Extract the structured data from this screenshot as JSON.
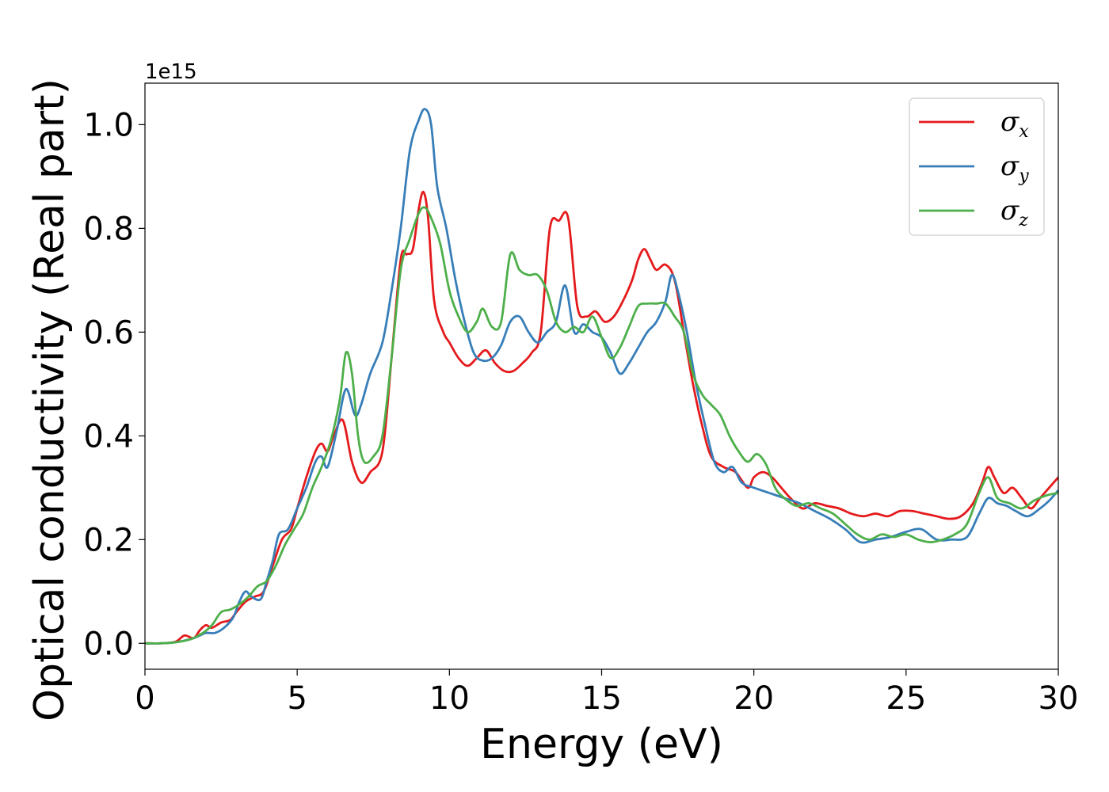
{
  "chart_data": {
    "type": "line",
    "xlabel": "Energy (eV)",
    "ylabel": "Optical conductivity (Real part)",
    "y_offset_label": "1e15",
    "xlim": [
      0,
      30
    ],
    "ylim": [
      -0.05,
      1.08
    ],
    "xticks": [
      0,
      5,
      10,
      15,
      20,
      25,
      30
    ],
    "yticks": [
      0.0,
      0.2,
      0.4,
      0.6,
      0.8,
      1.0
    ],
    "xtick_labels": [
      "0",
      "5",
      "10",
      "15",
      "20",
      "25",
      "30"
    ],
    "ytick_labels": [
      "0.0",
      "0.2",
      "0.4",
      "0.6",
      "0.8",
      "1.0"
    ],
    "grid": false,
    "legend_position": "top-right",
    "series": [
      {
        "name": "σx",
        "symbol": "σ",
        "subscript": "x",
        "color": "#e41a1c",
        "x": [
          0,
          0.5,
          1,
          1.3,
          1.6,
          1.8,
          2,
          2.2,
          2.5,
          2.8,
          3,
          3.3,
          3.6,
          3.9,
          4.2,
          4.5,
          4.8,
          5,
          5.3,
          5.6,
          5.8,
          6,
          6.2,
          6.5,
          6.8,
          7.1,
          7.4,
          7.8,
          8.1,
          8.4,
          8.6,
          8.8,
          9,
          9.15,
          9.3,
          9.5,
          9.8,
          10,
          10.3,
          10.6,
          10.9,
          11.2,
          11.5,
          11.8,
          12.1,
          12.4,
          12.7,
          13,
          13.3,
          13.6,
          13.9,
          14.2,
          14.5,
          14.8,
          15.1,
          15.4,
          15.7,
          16,
          16.2,
          16.4,
          16.6,
          16.8,
          17.1,
          17.4,
          17.7,
          18,
          18.3,
          18.6,
          19,
          19.4,
          19.8,
          20,
          20.3,
          20.6,
          20.9,
          21.2,
          21.6,
          22,
          22.4,
          22.8,
          23.2,
          23.6,
          24,
          24.4,
          24.8,
          25.2,
          25.6,
          26,
          26.4,
          26.8,
          27.2,
          27.5,
          27.7,
          27.9,
          28.2,
          28.5,
          28.8,
          29.1,
          29.4,
          29.7,
          30
        ],
        "y": [
          0,
          0,
          0.003,
          0.015,
          0.01,
          0.025,
          0.035,
          0.03,
          0.04,
          0.045,
          0.06,
          0.08,
          0.09,
          0.1,
          0.15,
          0.2,
          0.22,
          0.26,
          0.32,
          0.37,
          0.385,
          0.37,
          0.4,
          0.43,
          0.35,
          0.31,
          0.33,
          0.37,
          0.55,
          0.74,
          0.75,
          0.76,
          0.84,
          0.87,
          0.82,
          0.66,
          0.6,
          0.58,
          0.55,
          0.535,
          0.55,
          0.565,
          0.54,
          0.525,
          0.525,
          0.54,
          0.56,
          0.6,
          0.8,
          0.815,
          0.82,
          0.65,
          0.63,
          0.64,
          0.62,
          0.63,
          0.66,
          0.7,
          0.74,
          0.76,
          0.74,
          0.72,
          0.73,
          0.7,
          0.6,
          0.5,
          0.42,
          0.36,
          0.34,
          0.33,
          0.3,
          0.32,
          0.33,
          0.32,
          0.3,
          0.28,
          0.26,
          0.27,
          0.265,
          0.26,
          0.25,
          0.245,
          0.25,
          0.245,
          0.255,
          0.255,
          0.25,
          0.245,
          0.24,
          0.245,
          0.27,
          0.31,
          0.34,
          0.32,
          0.29,
          0.3,
          0.28,
          0.26,
          0.28,
          0.3,
          0.32
        ]
      },
      {
        "name": "σy",
        "symbol": "σ",
        "subscript": "y",
        "color": "#377eb8",
        "x": [
          0,
          0.5,
          1,
          1.5,
          1.8,
          2,
          2.3,
          2.6,
          2.9,
          3.1,
          3.3,
          3.5,
          3.8,
          4,
          4.2,
          4.4,
          4.7,
          5,
          5.3,
          5.6,
          5.8,
          6,
          6.3,
          6.6,
          6.9,
          7.1,
          7.4,
          7.8,
          8.1,
          8.4,
          8.7,
          9,
          9.2,
          9.4,
          9.6,
          9.9,
          10.2,
          10.5,
          10.8,
          11.1,
          11.4,
          11.7,
          12,
          12.3,
          12.6,
          12.9,
          13.2,
          13.5,
          13.8,
          14.1,
          14.4,
          14.7,
          15,
          15.3,
          15.6,
          15.9,
          16.2,
          16.5,
          16.8,
          17.1,
          17.3,
          17.5,
          17.8,
          18.1,
          18.4,
          18.7,
          19,
          19.3,
          19.6,
          20,
          20.5,
          21,
          21.5,
          22,
          22.5,
          23,
          23.5,
          24,
          24.5,
          25,
          25.5,
          26,
          26.5,
          27,
          27.4,
          27.7,
          28,
          28.3,
          28.6,
          29,
          29.4,
          29.7,
          30
        ],
        "y": [
          0,
          0,
          0.002,
          0.008,
          0.015,
          0.02,
          0.02,
          0.03,
          0.05,
          0.08,
          0.1,
          0.09,
          0.085,
          0.12,
          0.16,
          0.21,
          0.22,
          0.26,
          0.3,
          0.35,
          0.36,
          0.34,
          0.41,
          0.49,
          0.44,
          0.46,
          0.52,
          0.58,
          0.68,
          0.8,
          0.95,
          1.01,
          1.03,
          1.0,
          0.88,
          0.8,
          0.7,
          0.62,
          0.56,
          0.545,
          0.55,
          0.575,
          0.62,
          0.63,
          0.6,
          0.58,
          0.6,
          0.62,
          0.69,
          0.6,
          0.615,
          0.6,
          0.59,
          0.56,
          0.52,
          0.54,
          0.57,
          0.6,
          0.62,
          0.66,
          0.71,
          0.68,
          0.6,
          0.5,
          0.42,
          0.35,
          0.33,
          0.34,
          0.31,
          0.3,
          0.29,
          0.28,
          0.27,
          0.255,
          0.24,
          0.22,
          0.195,
          0.2,
          0.205,
          0.215,
          0.22,
          0.2,
          0.2,
          0.205,
          0.25,
          0.28,
          0.27,
          0.265,
          0.255,
          0.245,
          0.26,
          0.275,
          0.295
        ]
      },
      {
        "name": "σz",
        "symbol": "σ",
        "subscript": "z",
        "color": "#4daf4a",
        "x": [
          0,
          0.5,
          1,
          1.5,
          1.9,
          2.2,
          2.5,
          2.8,
          3.1,
          3.4,
          3.7,
          4,
          4.3,
          4.6,
          4.9,
          5.2,
          5.5,
          5.8,
          6.1,
          6.4,
          6.6,
          6.8,
          7,
          7.2,
          7.5,
          7.8,
          8.1,
          8.4,
          8.7,
          9,
          9.2,
          9.4,
          9.7,
          10,
          10.3,
          10.6,
          10.9,
          11.1,
          11.4,
          11.7,
          12,
          12.3,
          12.6,
          12.9,
          13.2,
          13.5,
          13.8,
          14.1,
          14.4,
          14.7,
          15,
          15.3,
          15.6,
          15.9,
          16.2,
          16.5,
          16.8,
          17.1,
          17.4,
          17.7,
          18,
          18.3,
          18.6,
          18.9,
          19.2,
          19.5,
          19.8,
          20.1,
          20.4,
          20.7,
          21,
          21.4,
          21.8,
          22.2,
          22.6,
          23,
          23.4,
          23.8,
          24.2,
          24.6,
          25,
          25.4,
          25.8,
          26.2,
          26.6,
          27,
          27.4,
          27.7,
          28,
          28.4,
          28.8,
          29.2,
          29.6,
          30
        ],
        "y": [
          0,
          0,
          0.002,
          0.008,
          0.02,
          0.035,
          0.06,
          0.065,
          0.075,
          0.09,
          0.11,
          0.12,
          0.15,
          0.19,
          0.22,
          0.25,
          0.3,
          0.34,
          0.39,
          0.47,
          0.56,
          0.52,
          0.4,
          0.35,
          0.36,
          0.4,
          0.55,
          0.72,
          0.78,
          0.83,
          0.84,
          0.82,
          0.77,
          0.68,
          0.63,
          0.6,
          0.62,
          0.645,
          0.61,
          0.62,
          0.75,
          0.72,
          0.71,
          0.71,
          0.68,
          0.62,
          0.6,
          0.61,
          0.6,
          0.63,
          0.59,
          0.55,
          0.57,
          0.61,
          0.65,
          0.655,
          0.655,
          0.655,
          0.63,
          0.6,
          0.52,
          0.48,
          0.46,
          0.44,
          0.4,
          0.37,
          0.35,
          0.365,
          0.345,
          0.3,
          0.28,
          0.265,
          0.27,
          0.26,
          0.25,
          0.23,
          0.21,
          0.2,
          0.21,
          0.205,
          0.21,
          0.2,
          0.195,
          0.2,
          0.21,
          0.23,
          0.29,
          0.32,
          0.28,
          0.27,
          0.26,
          0.275,
          0.285,
          0.29
        ]
      }
    ]
  }
}
